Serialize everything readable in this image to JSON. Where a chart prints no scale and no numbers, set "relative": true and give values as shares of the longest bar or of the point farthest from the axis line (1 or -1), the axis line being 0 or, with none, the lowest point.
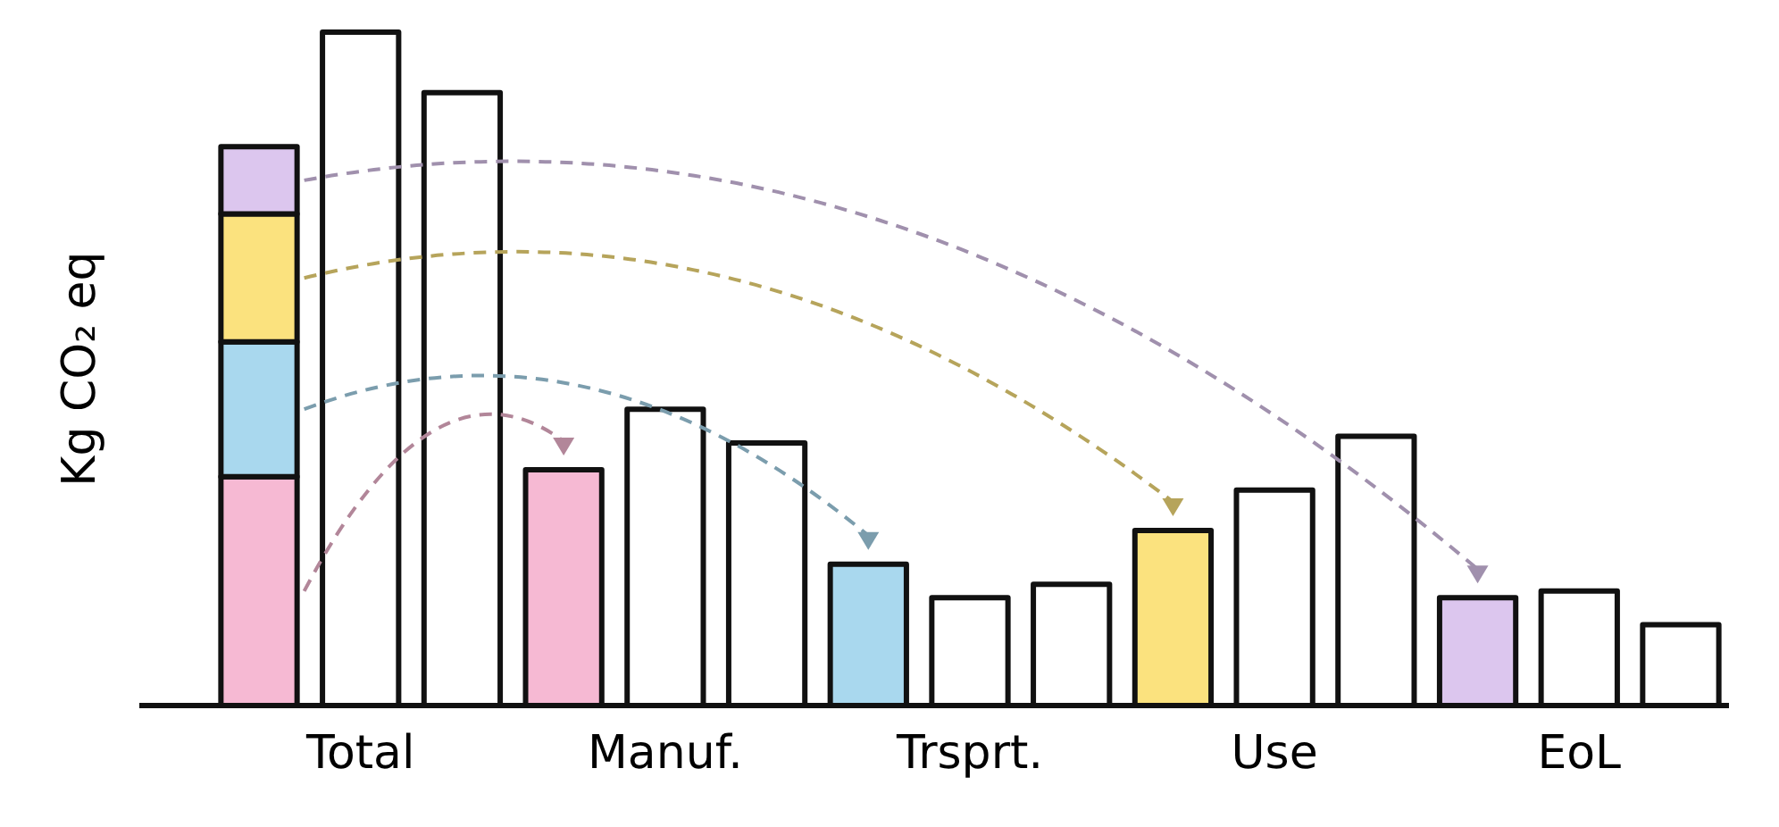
{
  "chart_data": {
    "type": "bar",
    "relative": true,
    "stacked": true,
    "ylabel": "Kg CO₂ eq",
    "categories": [
      null,
      "Total",
      null,
      null,
      "Manuf.",
      null,
      null,
      "Trsprt.",
      null,
      null,
      "Use",
      null,
      null,
      "EoL",
      null
    ],
    "series": [
      {
        "color": "#f6b9d3",
        "values": [
          0.34,
          null,
          null,
          0.35,
          null,
          null,
          null,
          null,
          null,
          null,
          null,
          null,
          null,
          null,
          null
        ]
      },
      {
        "color": "#a9d8ee",
        "values": [
          0.2,
          null,
          null,
          null,
          null,
          null,
          0.21,
          null,
          null,
          null,
          null,
          null,
          null,
          null,
          null
        ]
      },
      {
        "color": "#fbe27e",
        "values": [
          0.19,
          null,
          null,
          null,
          null,
          null,
          null,
          null,
          null,
          0.26,
          null,
          null,
          null,
          null,
          null
        ]
      },
      {
        "color": "#dcc6ee",
        "values": [
          0.1,
          null,
          null,
          null,
          null,
          null,
          null,
          null,
          null,
          null,
          null,
          null,
          0.16,
          null,
          null
        ]
      },
      {
        "color": "#ffffff",
        "values": [
          null,
          1.0,
          0.91,
          null,
          0.44,
          0.39,
          null,
          0.16,
          0.18,
          null,
          0.32,
          0.4,
          null,
          0.17,
          0.12
        ]
      }
    ]
  }
}
